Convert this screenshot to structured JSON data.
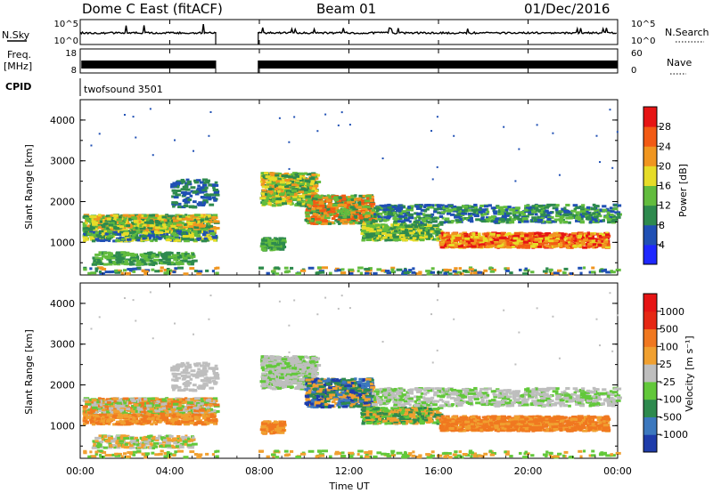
{
  "header": {
    "radar": "Dome C East (fitACF)",
    "beam": "Beam 01",
    "date": "01/Dec/2016"
  },
  "parameter_panels": {
    "nsky_label": "N.Sky",
    "nsearch_label": "N.Search",
    "log_ticks": [
      "10^5",
      "10^0"
    ],
    "freq_label_1": "Freq.",
    "freq_label_2": "[MHz]",
    "freq_ticks": [
      "18",
      "8"
    ],
    "nave_label": "Nave",
    "nave_ticks": [
      "60",
      "0"
    ],
    "cpid_label": "CPID",
    "cpid_value": "twofsound 3501"
  },
  "chart_data": [
    {
      "type": "heatmap",
      "name": "power",
      "ylabel": "Slant Range [km]",
      "ylim": [
        200,
        4500
      ],
      "y_ticks": [
        1000,
        2000,
        3000,
        4000
      ],
      "y_tick_labels": [
        "1000",
        "2000",
        "3000",
        "4000"
      ],
      "colorbar_label": "Power [dB]",
      "colorbar_ticks": [
        "4",
        "8",
        "12",
        "16",
        "20",
        "24",
        "28"
      ],
      "colorbar_colors": [
        "#1e28ff",
        "#2050b4",
        "#2e8a4e",
        "#62bc3e",
        "#e6dc28",
        "#f09620",
        "#f25a14",
        "#e61414"
      ]
    },
    {
      "type": "heatmap",
      "name": "velocity",
      "ylabel": "Slant Range [km]",
      "ylim": [
        200,
        4500
      ],
      "y_ticks": [
        1000,
        2000,
        3000,
        4000
      ],
      "y_tick_labels": [
        "1000",
        "2000",
        "3000",
        "4000"
      ],
      "colorbar_label": "Velocity [m s⁻¹]",
      "colorbar_ticks": [
        "1000",
        "500",
        "100",
        "25",
        "-25",
        "-100",
        "-500",
        "-1000"
      ],
      "colorbar_colors": [
        "#1e3caa",
        "#3c78be",
        "#2e8a4e",
        "#62c83a",
        "#bebebe",
        "#f0a030",
        "#f07820",
        "#e62814",
        "#e61414"
      ]
    }
  ],
  "x_axis": {
    "xlabel": "Time UT",
    "xlim": [
      "00:00",
      "24:00"
    ],
    "tick_labels": [
      "00:00",
      "04:00",
      "08:00",
      "12:00",
      "16:00",
      "20:00",
      "00:00"
    ]
  }
}
